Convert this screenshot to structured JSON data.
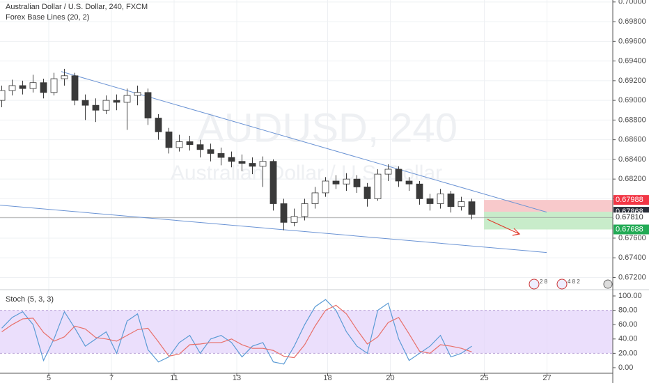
{
  "chart_data": [
    {
      "type": "candlestick",
      "title": "Australian Dollar / U.S. Dollar, 240, FXCM",
      "subtitle": "Forex Base Lines (20, 2)",
      "watermark": "AUDUSD, 240",
      "watermark_sub": "Australian Dollar / U.S. Dollar",
      "up_color": "#ffffff",
      "down_color": "#3a3a3a",
      "wick_color": "#3a3a3a",
      "x": [
        -1.5,
        -1.1667,
        -0.8333,
        -0.5,
        -0.1667,
        0.1667,
        0.5,
        0.8333,
        1.1667,
        1.5,
        1.8333,
        2.1667,
        2.5,
        2.8333,
        3.1667,
        3.5,
        3.8333,
        4.1667,
        4.5,
        4.8333,
        5.1667,
        5.5,
        5.8333,
        6.1667,
        6.5,
        6.8333,
        7.1667,
        7.5,
        7.8333,
        8.1667,
        8.5,
        8.8333,
        9.1667,
        9.5,
        9.8333,
        10.1667,
        10.5,
        10.8333,
        11.1667,
        11.5,
        11.8333,
        12.1667,
        12.5,
        12.8333,
        13.1667,
        13.5
      ],
      "open": [
        0.69,
        0.691,
        0.6915,
        0.6912,
        0.6918,
        0.6908,
        0.6922,
        0.6925,
        0.69,
        0.6895,
        0.689,
        0.69,
        0.6898,
        0.6905,
        0.6908,
        0.6882,
        0.6868,
        0.6852,
        0.6858,
        0.6855,
        0.685,
        0.6846,
        0.6842,
        0.6838,
        0.6836,
        0.6833,
        0.6838,
        0.6795,
        0.6776,
        0.6782,
        0.6795,
        0.6806,
        0.6818,
        0.6815,
        0.682,
        0.6812,
        0.68,
        0.6825,
        0.683,
        0.6818,
        0.6815,
        0.68,
        0.6795,
        0.6805,
        0.6792,
        0.6797
      ],
      "high": [
        0.6915,
        0.6921,
        0.692,
        0.6926,
        0.6922,
        0.6928,
        0.6932,
        0.6928,
        0.6906,
        0.6902,
        0.6905,
        0.6906,
        0.6912,
        0.6915,
        0.6912,
        0.6886,
        0.6872,
        0.6865,
        0.6864,
        0.686,
        0.6856,
        0.6852,
        0.6848,
        0.6845,
        0.6842,
        0.6843,
        0.684,
        0.68,
        0.679,
        0.68,
        0.6812,
        0.6822,
        0.6824,
        0.6826,
        0.6824,
        0.6816,
        0.683,
        0.6835,
        0.6833,
        0.6822,
        0.6818,
        0.6805,
        0.681,
        0.6808,
        0.6802,
        0.68
      ],
      "low": [
        0.6893,
        0.6905,
        0.6906,
        0.6908,
        0.6902,
        0.6905,
        0.6915,
        0.6895,
        0.688,
        0.6878,
        0.6886,
        0.689,
        0.687,
        0.6895,
        0.6875,
        0.686,
        0.6846,
        0.6848,
        0.6849,
        0.6842,
        0.6838,
        0.6834,
        0.6832,
        0.6828,
        0.6825,
        0.6812,
        0.6788,
        0.6768,
        0.6772,
        0.6778,
        0.679,
        0.6802,
        0.681,
        0.6808,
        0.6806,
        0.6792,
        0.6798,
        0.6818,
        0.6812,
        0.6808,
        0.6794,
        0.6788,
        0.679,
        0.6786,
        0.6788,
        0.6779
      ],
      "close": [
        0.691,
        0.6915,
        0.6912,
        0.6918,
        0.6908,
        0.6922,
        0.6925,
        0.69,
        0.6895,
        0.689,
        0.69,
        0.6898,
        0.6905,
        0.6908,
        0.6882,
        0.6868,
        0.6852,
        0.6858,
        0.6855,
        0.685,
        0.6846,
        0.6842,
        0.6838,
        0.6836,
        0.6833,
        0.6838,
        0.6795,
        0.6776,
        0.6782,
        0.6795,
        0.6806,
        0.6818,
        0.6815,
        0.682,
        0.6812,
        0.68,
        0.6825,
        0.683,
        0.6818,
        0.6815,
        0.68,
        0.6795,
        0.6805,
        0.6792,
        0.6797,
        0.6784
      ],
      "xlim": [
        -1.556,
        18.0
      ],
      "xticks": [
        {
          "value": 0,
          "label": "5"
        },
        {
          "value": 2,
          "label": "7"
        },
        {
          "value": 4,
          "label": "11"
        },
        {
          "value": 6,
          "label": "13"
        },
        {
          "value": 8.9,
          "label": "18"
        },
        {
          "value": 10.9,
          "label": "20"
        },
        {
          "value": 13.9,
          "label": "25"
        },
        {
          "value": 15.9,
          "label": "27"
        }
      ],
      "ylim": [
        0.6709,
        0.7002
      ],
      "yticks": [
        {
          "value": 0.672,
          "label": "0.67200"
        },
        {
          "value": 0.674,
          "label": "0.67400"
        },
        {
          "value": 0.676,
          "label": "0.67600"
        },
        {
          "value": 0.678,
          "label": "0.67800"
        },
        {
          "value": 0.68,
          "label": "0.68000"
        },
        {
          "value": 0.682,
          "label": "0.68200"
        },
        {
          "value": 0.684,
          "label": "0.68400"
        },
        {
          "value": 0.686,
          "label": "0.68600"
        },
        {
          "value": 0.688,
          "label": "0.68800"
        },
        {
          "value": 0.69,
          "label": "0.69000"
        },
        {
          "value": 0.692,
          "label": "0.69200"
        },
        {
          "value": 0.694,
          "label": "0.69400"
        },
        {
          "value": 0.696,
          "label": "0.69600"
        },
        {
          "value": 0.698,
          "label": "0.69800"
        },
        {
          "value": 0.7,
          "label": "0.70000"
        }
      ],
      "grid": true,
      "trendline_color": "#6a93d4",
      "trendlines": [
        {
          "x": [
            0.4,
            15.89
          ],
          "y": [
            0.69293,
            0.67864
          ]
        },
        {
          "x": [
            -1.556,
            15.89
          ],
          "y": [
            0.67935,
            0.67454
          ]
        }
      ],
      "position": {
        "x_start": 13.89,
        "stop": 0.67988,
        "entry": 0.67868,
        "target": 0.67688,
        "last": {
          "value": 0.6781,
          "label": "0.67810"
        }
      },
      "events": [
        "2 8",
        "4 8 2"
      ]
    },
    {
      "type": "line",
      "title": "Stoch (5, 3, 3)",
      "x": [
        -1.5,
        -1.1667,
        -0.8333,
        -0.5,
        -0.1667,
        0.1667,
        0.5,
        0.8333,
        1.1667,
        1.5,
        1.8333,
        2.1667,
        2.5,
        2.8333,
        3.1667,
        3.5,
        3.8333,
        4.1667,
        4.5,
        4.8333,
        5.1667,
        5.5,
        5.8333,
        6.1667,
        6.5,
        6.8333,
        7.1667,
        7.5,
        7.8333,
        8.1667,
        8.5,
        8.8333,
        9.1667,
        9.5,
        9.8333,
        10.1667,
        10.5,
        10.8333,
        11.1667,
        11.5,
        11.8333,
        12.1667,
        12.5,
        12.8333,
        13.1667,
        13.5
      ],
      "series": [
        {
          "color": "#5b9bd5",
          "values": [
            55,
            70,
            78,
            60,
            10,
            40,
            78,
            55,
            30,
            40,
            50,
            20,
            65,
            75,
            25,
            8,
            15,
            35,
            45,
            20,
            40,
            45,
            35,
            15,
            30,
            35,
            8,
            5,
            30,
            60,
            85,
            95,
            80,
            50,
            30,
            20,
            80,
            90,
            40,
            10,
            20,
            30,
            45,
            15,
            20,
            30
          ]
        },
        {
          "color": "#e8706a",
          "values": [
            50,
            60,
            68,
            69,
            49,
            37,
            43,
            58,
            54,
            42,
            40,
            37,
            45,
            53,
            55,
            36,
            16,
            19,
            32,
            33,
            35,
            35,
            40,
            32,
            27,
            27,
            24,
            16,
            14,
            32,
            58,
            80,
            87,
            75,
            53,
            33,
            43,
            63,
            70,
            47,
            23,
            20,
            32,
            30,
            27,
            22
          ]
        }
      ],
      "band": [
        20,
        80
      ],
      "band_color": "#e3d2fb",
      "xlim": [
        -1.556,
        18.0
      ],
      "ylim": [
        -7.8,
        106.8
      ],
      "yticks": [
        {
          "value": 0,
          "label": "0.00"
        },
        {
          "value": 20,
          "label": "20.00"
        },
        {
          "value": 40,
          "label": "40.00"
        },
        {
          "value": 60,
          "label": "60.00"
        },
        {
          "value": 80,
          "label": "80.00"
        },
        {
          "value": 100,
          "label": "100.00"
        }
      ]
    }
  ]
}
